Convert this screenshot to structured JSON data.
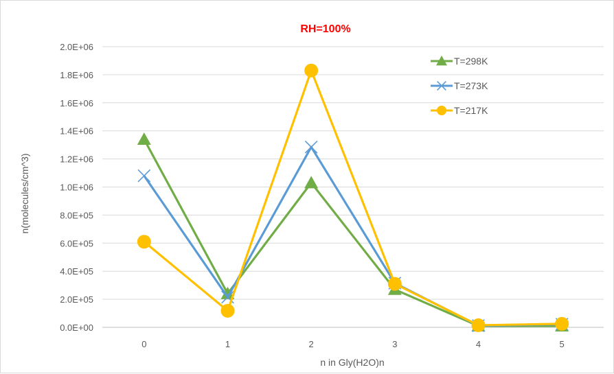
{
  "chart_data": {
    "type": "line",
    "title": "RH=100%",
    "title_color": "#ff0000",
    "xlabel": "n in Gly(H2O)n",
    "ylabel": "n(molecules/cm^3)",
    "categories": [
      "0",
      "1",
      "2",
      "3",
      "4",
      "5"
    ],
    "ylim": [
      0,
      2000000
    ],
    "y_ticks": [
      {
        "value": 0,
        "label": "0.0E+00"
      },
      {
        "value": 200000,
        "label": "2.0E+05"
      },
      {
        "value": 400000,
        "label": "4.0E+05"
      },
      {
        "value": 600000,
        "label": "6.0E+05"
      },
      {
        "value": 800000,
        "label": "8.0E+05"
      },
      {
        "value": 1000000,
        "label": "1.0E+06"
      },
      {
        "value": 1200000,
        "label": "1.2E+06"
      },
      {
        "value": 1400000,
        "label": "1.4E+06"
      },
      {
        "value": 1600000,
        "label": "1.6E+06"
      },
      {
        "value": 1800000,
        "label": "1.8E+06"
      },
      {
        "value": 2000000,
        "label": "2.0E+06"
      }
    ],
    "grid": true,
    "legend_position": "top-right",
    "series": [
      {
        "name": "T=298K",
        "color": "#70ad47",
        "marker": "triangle",
        "values": [
          1340000,
          240000,
          1030000,
          270000,
          10000,
          10000
        ]
      },
      {
        "name": "T=273K",
        "color": "#5b9bd5",
        "marker": "x",
        "values": [
          1080000,
          215000,
          1285000,
          315000,
          12000,
          22000
        ]
      },
      {
        "name": "T=217K",
        "color": "#ffc000",
        "marker": "circle",
        "values": [
          610000,
          118000,
          1830000,
          310000,
          15000,
          25000
        ]
      }
    ]
  }
}
